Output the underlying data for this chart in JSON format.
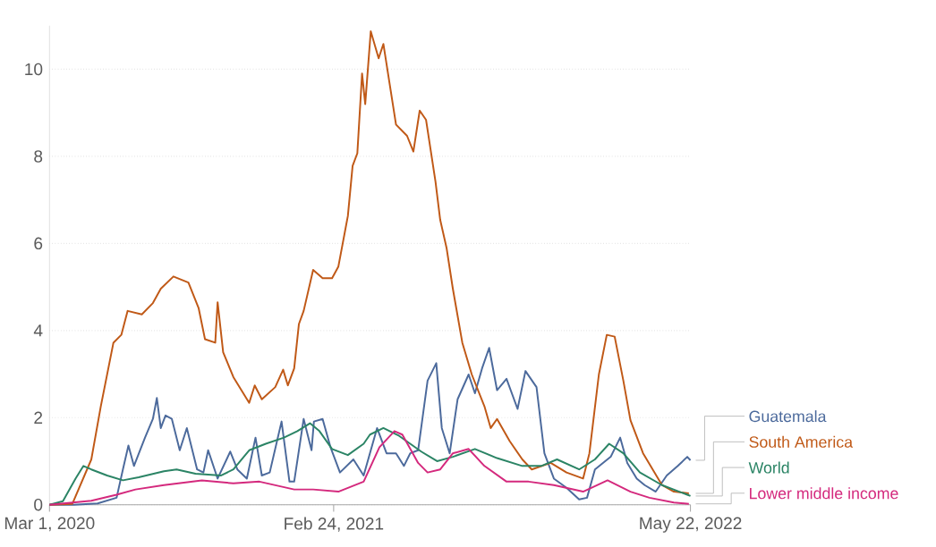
{
  "chart_data": {
    "type": "line",
    "xlim": [
      "2020-03-01",
      "2022-05-22"
    ],
    "xticks": [
      {
        "value": "2020-03-01",
        "label": "Mar 1, 2020"
      },
      {
        "value": "2021-02-24",
        "label": "Feb 24, 2021"
      },
      {
        "value": "2022-05-22",
        "label": "May 22, 2022"
      }
    ],
    "ylim": [
      0,
      11
    ],
    "yticks": [
      0,
      2,
      4,
      6,
      8,
      10
    ],
    "grid": "y",
    "legend": "right",
    "line_style": "solid",
    "series": [
      {
        "name": "Guatemala",
        "color": "#4c6a9c",
        "x": [
          "2020-03-01",
          "2020-04-01",
          "2020-05-01",
          "2020-05-25",
          "2020-06-02",
          "2020-06-09",
          "2020-06-16",
          "2020-06-30",
          "2020-07-10",
          "2020-07-15",
          "2020-07-20",
          "2020-07-26",
          "2020-08-03",
          "2020-08-13",
          "2020-08-22",
          "2020-09-04",
          "2020-09-12",
          "2020-09-18",
          "2020-09-30",
          "2020-10-16",
          "2020-10-25",
          "2020-11-06",
          "2020-11-17",
          "2020-11-25",
          "2020-12-05",
          "2020-12-20",
          "2020-12-30",
          "2021-01-05",
          "2021-01-17",
          "2021-01-27",
          "2021-01-30",
          "2021-02-10",
          "2021-02-20",
          "2021-03-04",
          "2021-03-21",
          "2021-04-03",
          "2021-04-20",
          "2021-05-02",
          "2021-05-14",
          "2021-05-24",
          "2021-06-01",
          "2021-06-11",
          "2021-06-23",
          "2021-07-04",
          "2021-07-11",
          "2021-07-21",
          "2021-07-31",
          "2021-08-14",
          "2021-08-22",
          "2021-08-31",
          "2021-09-09",
          "2021-09-19",
          "2021-10-01",
          "2021-10-15",
          "2021-10-25",
          "2021-11-08",
          "2021-11-18",
          "2021-11-30",
          "2021-12-16",
          "2022-01-01",
          "2022-01-11",
          "2022-01-21",
          "2022-02-10",
          "2022-02-22",
          "2022-03-03",
          "2022-03-15",
          "2022-03-25",
          "2022-04-08",
          "2022-04-22",
          "2022-05-06",
          "2022-05-18",
          "2022-05-22"
        ],
        "values": [
          0,
          0,
          0.03,
          0.16,
          0.81,
          1.36,
          0.89,
          1.54,
          1.97,
          2.45,
          1.76,
          2.05,
          1.97,
          1.25,
          1.76,
          0.81,
          0.74,
          1.25,
          0.6,
          1.22,
          0.81,
          0.6,
          1.54,
          0.67,
          0.74,
          1.91,
          0.53,
          0.53,
          1.97,
          1.25,
          1.91,
          1.97,
          1.32,
          0.74,
          1.04,
          0.67,
          1.76,
          1.18,
          1.18,
          0.89,
          1.18,
          1.25,
          2.85,
          3.25,
          1.76,
          1.18,
          2.42,
          2.99,
          2.56,
          3.13,
          3.6,
          2.63,
          2.89,
          2.2,
          3.07,
          2.7,
          1.18,
          0.6,
          0.39,
          0.12,
          0.16,
          0.81,
          1.1,
          1.54,
          0.96,
          0.6,
          0.45,
          0.3,
          0.67,
          0.89,
          1.1,
          1.02
        ]
      },
      {
        "name": "South America",
        "color": "#c05917",
        "x": [
          "2020-03-01",
          "2020-03-30",
          "2020-04-23",
          "2020-05-05",
          "2020-05-21",
          "2020-05-31",
          "2020-06-08",
          "2020-06-26",
          "2020-07-10",
          "2020-07-20",
          "2020-08-05",
          "2020-08-24",
          "2020-09-06",
          "2020-09-14",
          "2020-09-27",
          "2020-09-30",
          "2020-10-07",
          "2020-10-20",
          "2020-11-09",
          "2020-11-16",
          "2020-11-25",
          "2020-12-12",
          "2020-12-22",
          "2020-12-28",
          "2021-01-05",
          "2021-01-11",
          "2021-01-17",
          "2021-01-29",
          "2021-02-10",
          "2021-02-22",
          "2021-03-02",
          "2021-03-14",
          "2021-03-20",
          "2021-03-26",
          "2021-04-01",
          "2021-04-05",
          "2021-04-12",
          "2021-04-22",
          "2021-04-28",
          "2021-05-14",
          "2021-05-28",
          "2021-06-05",
          "2021-06-13",
          "2021-06-21",
          "2021-07-03",
          "2021-07-09",
          "2021-07-17",
          "2021-07-25",
          "2021-08-06",
          "2021-08-18",
          "2021-09-03",
          "2021-09-11",
          "2021-09-19",
          "2021-10-05",
          "2021-10-21",
          "2021-11-02",
          "2021-11-26",
          "2021-12-16",
          "2022-01-06",
          "2022-01-14",
          "2022-01-26",
          "2022-02-05",
          "2022-02-15",
          "2022-02-26",
          "2022-03-07",
          "2022-03-23",
          "2022-04-16",
          "2022-05-01",
          "2022-05-20"
        ],
        "values": [
          0,
          0.02,
          1.04,
          2.26,
          3.72,
          3.9,
          4.45,
          4.37,
          4.63,
          4.96,
          5.24,
          5.1,
          4.51,
          3.8,
          3.72,
          4.65,
          3.5,
          2.93,
          2.34,
          2.74,
          2.42,
          2.7,
          3.1,
          2.74,
          3.13,
          4.15,
          4.45,
          5.39,
          5.2,
          5.2,
          5.47,
          6.63,
          7.78,
          8.07,
          9.9,
          9.2,
          10.87,
          10.25,
          10.58,
          8.73,
          8.47,
          8.11,
          9.05,
          8.84,
          7.42,
          6.54,
          5.9,
          4.96,
          3.72,
          2.99,
          2.26,
          1.76,
          1.97,
          1.46,
          1.04,
          0.81,
          0.96,
          0.74,
          0.6,
          1.18,
          2.99,
          3.9,
          3.86,
          2.85,
          1.94,
          1.18,
          0.45,
          0.3,
          0.26
        ]
      },
      {
        "name": "World",
        "color": "#2b8465",
        "x": [
          "2020-03-01",
          "2020-03-18",
          "2020-04-03",
          "2020-04-13",
          "2020-04-23",
          "2020-05-13",
          "2020-06-02",
          "2020-06-22",
          "2020-07-24",
          "2020-08-09",
          "2020-09-02",
          "2020-10-04",
          "2020-10-20",
          "2020-11-09",
          "2020-11-30",
          "2020-12-23",
          "2021-01-09",
          "2021-01-25",
          "2021-02-06",
          "2021-02-22",
          "2021-03-14",
          "2021-04-03",
          "2021-04-11",
          "2021-04-28",
          "2021-05-18",
          "2021-06-15",
          "2021-07-05",
          "2021-07-25",
          "2021-08-22",
          "2021-09-19",
          "2021-10-21",
          "2021-11-14",
          "2021-12-04",
          "2022-01-01",
          "2022-01-21",
          "2022-02-08",
          "2022-02-26",
          "2022-03-19",
          "2022-04-16",
          "2022-05-18",
          "2022-05-22"
        ],
        "values": [
          0,
          0.08,
          0.6,
          0.89,
          0.81,
          0.67,
          0.56,
          0.63,
          0.77,
          0.81,
          0.71,
          0.67,
          0.81,
          1.25,
          1.4,
          1.54,
          1.69,
          1.87,
          1.69,
          1.28,
          1.14,
          1.4,
          1.61,
          1.76,
          1.58,
          1.22,
          1.0,
          1.1,
          1.28,
          1.07,
          0.89,
          0.89,
          1.04,
          0.81,
          1.04,
          1.4,
          1.18,
          0.74,
          0.45,
          0.23,
          0.2
        ]
      },
      {
        "name": "Lower middle income",
        "color": "#d4297d",
        "x": [
          "2020-03-01",
          "2020-04-23",
          "2020-05-25",
          "2020-06-18",
          "2020-07-24",
          "2020-09-10",
          "2020-10-20",
          "2020-11-22",
          "2021-01-05",
          "2021-01-29",
          "2021-03-02",
          "2021-04-03",
          "2021-04-23",
          "2021-05-12",
          "2021-05-22",
          "2021-06-11",
          "2021-06-23",
          "2021-07-09",
          "2021-07-25",
          "2021-08-14",
          "2021-09-03",
          "2021-10-01",
          "2021-10-29",
          "2021-11-30",
          "2022-01-06",
          "2022-02-06",
          "2022-03-07",
          "2022-03-31",
          "2022-05-01",
          "2022-05-20"
        ],
        "values": [
          0,
          0.09,
          0.23,
          0.35,
          0.45,
          0.56,
          0.49,
          0.53,
          0.35,
          0.35,
          0.3,
          0.53,
          1.32,
          1.69,
          1.61,
          0.96,
          0.74,
          0.81,
          1.18,
          1.28,
          0.89,
          0.53,
          0.53,
          0.45,
          0.3,
          0.56,
          0.3,
          0.16,
          0.05,
          0.02
        ]
      }
    ]
  }
}
